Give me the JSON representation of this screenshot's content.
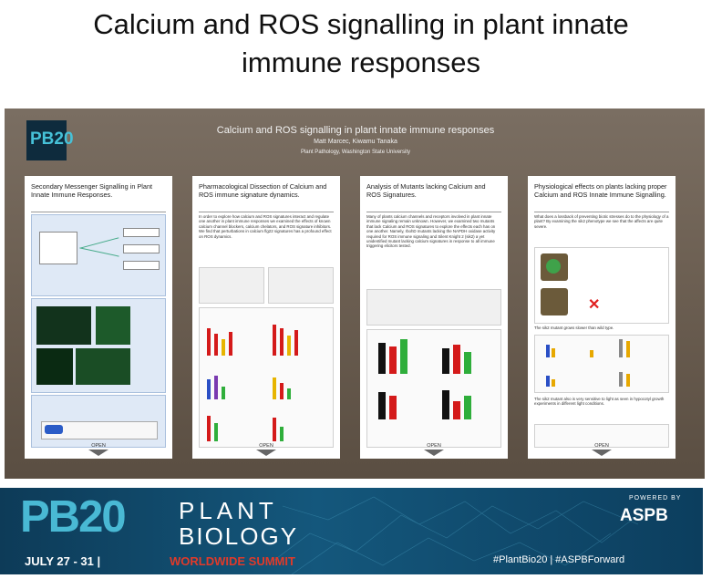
{
  "slide": {
    "title_line1": "Calcium and ROS signalling in plant innate",
    "title_line2": "immune responses"
  },
  "poster": {
    "logo": "PB20",
    "title": "Calcium and ROS signalling in plant innate immune responses",
    "authors": "Matt Marcec, Kiwamu Tanaka",
    "affiliation": "Plant Pathology, Washington State University",
    "panels": [
      {
        "title": "Secondary Messenger Signalling in Plant Innate Immune Responses.",
        "open_label": "OPEN"
      },
      {
        "title": "Pharmacological Dissection of Calcium and ROS immune signature dynamics.",
        "text": "In order to explore how calcium and ROS signatures interact and regulate one another in plant immune responses we examined the effects of known calcium channel blockers, calcium chelators, and ROS signature inhibitors. We find that perturbations in calcium flg22 signatures has a profound effect on ROS dynamics.",
        "open_label": "OPEN"
      },
      {
        "title": "Analysis of Mutants lacking Calcium and ROS Signatures.",
        "text": "Many of plants calcium channels and receptors involved in plant innate immune signaling remain unknown. However, we examined two mutants that lack Calcium and ROS signatures to explore the effects each has on one another. Namely, rbohD mutants lacking the NAPDH oxidase activity required for ROS immune signaling and Silent Knight 2 (sik2) a yet unidentified mutant lacking calcium signatures in response to all immune triggering elicitors tested.",
        "open_label": "OPEN"
      },
      {
        "title": "Physiological effects on plants lacking proper Calcium and ROS Innate Immune Signalling.",
        "text1": "What does a lossback of preventing biotic stresses do to the physiology of a plant? By examining the sik2 phenotype we see that the affects are quite severe.",
        "text2": "The sik2 mutant grows slower than wild type.",
        "text3": "The sik2 mutant also is very sensitive to light as seen in hypocotyl growth experiments in different light conditions.",
        "open_label": "OPEN"
      }
    ]
  },
  "banner": {
    "pb": "PB20",
    "plant": "PLANT",
    "biology": "BIOLOGY",
    "date": "JULY 27 - 31  |",
    "summit": "WORLDWIDE SUMMIT",
    "powered_by": "POWERED BY",
    "aspb": "ASPB",
    "hashtags": "#PlantBio20  |  #ASPBForward"
  },
  "colors": {
    "poster_bg": "#6e6154",
    "banner_bg": "#14577c",
    "accent_cyan": "#49b9d4",
    "summit_red": "#e03a2a"
  }
}
